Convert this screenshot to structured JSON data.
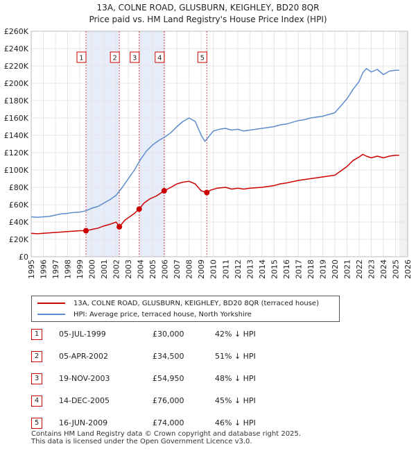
{
  "title": "13A, COLNE ROAD, GLUSBURN, KEIGHLEY, BD20 8QR",
  "subtitle": "Price paid vs. HM Land Registry's House Price Index (HPI)",
  "colors": {
    "property": "#cc0000",
    "hpi": "#5b8ccc",
    "shade": "#dde6f5"
  },
  "legend": {
    "property": "13A, COLNE ROAD, GLUSBURN, KEIGHLEY, BD20 8QR (terraced house)",
    "hpi": "HPI: Average price, terraced house, North Yorkshire"
  },
  "chart_data": {
    "type": "line",
    "title": "Price paid vs. HM Land Registry's House Price Index (HPI)",
    "xlim": [
      1995,
      2026
    ],
    "ylim": [
      0,
      260000
    ],
    "x_ticks": [
      "1995",
      "1996",
      "1997",
      "1998",
      "1999",
      "2000",
      "2001",
      "2002",
      "2003",
      "2004",
      "2005",
      "2006",
      "2007",
      "2008",
      "2009",
      "2010",
      "2011",
      "2012",
      "2013",
      "2014",
      "2015",
      "2016",
      "2017",
      "2018",
      "2019",
      "2020",
      "2021",
      "2022",
      "2023",
      "2024",
      "2025",
      "2026"
    ],
    "y_ticks": [
      {
        "v": 0,
        "label": "£0"
      },
      {
        "v": 20000,
        "label": "£20K"
      },
      {
        "v": 40000,
        "label": "£40K"
      },
      {
        "v": 60000,
        "label": "£60K"
      },
      {
        "v": 80000,
        "label": "£80K"
      },
      {
        "v": 100000,
        "label": "£100K"
      },
      {
        "v": 120000,
        "label": "£120K"
      },
      {
        "v": 140000,
        "label": "£140K"
      },
      {
        "v": 160000,
        "label": "£160K"
      },
      {
        "v": 180000,
        "label": "£180K"
      },
      {
        "v": 200000,
        "label": "£200K"
      },
      {
        "v": 220000,
        "label": "£220K"
      },
      {
        "v": 240000,
        "label": "£240K"
      },
      {
        "v": 260000,
        "label": "£260K"
      }
    ],
    "shaded_ranges": [
      [
        1999.51,
        2002.26
      ],
      [
        2003.89,
        2005.95
      ]
    ],
    "projection_start": 2025.3,
    "series": [
      {
        "name": "HPI: Average price, terraced house, North Yorkshire",
        "x": [
          1995,
          1995.5,
          1996,
          1996.5,
          1997,
          1997.5,
          1998,
          1998.5,
          1999,
          1999.5,
          2000,
          2000.5,
          2001,
          2001.5,
          2002,
          2002.5,
          2003,
          2003.5,
          2004,
          2004.5,
          2005,
          2005.5,
          2006,
          2006.5,
          2007,
          2007.5,
          2008,
          2008.5,
          2009,
          2009.3,
          2009.6,
          2010,
          2010.5,
          2011,
          2011.5,
          2012,
          2012.5,
          2013,
          2013.5,
          2014,
          2014.5,
          2015,
          2015.5,
          2016,
          2016.5,
          2017,
          2017.5,
          2018,
          2018.5,
          2019,
          2019.5,
          2020,
          2020.5,
          2021,
          2021.5,
          2022,
          2022.3,
          2022.6,
          2023,
          2023.5,
          2024,
          2024.5,
          2025,
          2025.3
        ],
        "values": [
          46000,
          45500,
          46000,
          46500,
          48000,
          49500,
          50000,
          51000,
          51500,
          53000,
          56000,
          58000,
          62000,
          66000,
          71000,
          80000,
          90000,
          100000,
          112000,
          122000,
          129000,
          134000,
          138000,
          143000,
          150000,
          156000,
          160000,
          156000,
          140000,
          133000,
          138000,
          145000,
          147000,
          148000,
          146000,
          147000,
          145000,
          146000,
          147000,
          148000,
          149000,
          150000,
          152000,
          153000,
          155000,
          157000,
          158000,
          160000,
          161000,
          162000,
          164000,
          166000,
          174000,
          182000,
          193000,
          202000,
          212000,
          217000,
          213000,
          216000,
          210000,
          214000,
          215000,
          215000
        ]
      },
      {
        "name": "13A, COLNE ROAD, GLUSBURN, KEIGHLEY, BD20 8QR (terraced house)",
        "x": [
          1995,
          1995.5,
          1996,
          1996.5,
          1997,
          1997.5,
          1998,
          1998.5,
          1999,
          1999.51,
          2000,
          2000.5,
          2001,
          2001.5,
          2002,
          2002.26,
          2002.7,
          2003,
          2003.5,
          2003.89,
          2004.3,
          2004.8,
          2005.3,
          2005.95,
          2006.5,
          2007,
          2007.5,
          2008,
          2008.5,
          2009,
          2009.46,
          2009.8,
          2010.3,
          2011,
          2011.5,
          2012,
          2012.5,
          2013,
          2013.5,
          2014,
          2014.5,
          2015,
          2015.5,
          2016,
          2016.5,
          2017,
          2017.5,
          2018,
          2018.5,
          2019,
          2019.5,
          2020,
          2020.5,
          2021,
          2021.5,
          2022,
          2022.3,
          2022.6,
          2023,
          2023.5,
          2024,
          2024.5,
          2025,
          2025.3
        ],
        "values": [
          27000,
          26500,
          27000,
          27500,
          28000,
          28500,
          29000,
          29500,
          30000,
          30000,
          31500,
          33000,
          35500,
          37500,
          40000,
          34500,
          42000,
          45000,
          50000,
          54950,
          62000,
          67000,
          70000,
          76000,
          80000,
          84000,
          86000,
          87000,
          84000,
          76000,
          74000,
          77000,
          79000,
          80000,
          78000,
          79000,
          78000,
          79000,
          79500,
          80000,
          81000,
          82000,
          84000,
          85000,
          86500,
          88000,
          89000,
          90000,
          91000,
          92000,
          93000,
          94000,
          99000,
          104000,
          111000,
          115000,
          118000,
          116000,
          114000,
          116000,
          114000,
          116000,
          117000,
          117000
        ]
      }
    ],
    "sales": [
      {
        "num": "1",
        "x": 1999.51,
        "value": 30000
      },
      {
        "num": "2",
        "x": 2002.26,
        "value": 34500
      },
      {
        "num": "3",
        "x": 2003.89,
        "value": 54950
      },
      {
        "num": "4",
        "x": 2005.95,
        "value": 76000
      },
      {
        "num": "5",
        "x": 2009.46,
        "value": 74000
      }
    ]
  },
  "table": [
    {
      "num": "1",
      "date": "05-JUL-1999",
      "price": "£30,000",
      "hpi": "42% ↓ HPI"
    },
    {
      "num": "2",
      "date": "05-APR-2002",
      "price": "£34,500",
      "hpi": "51% ↓ HPI"
    },
    {
      "num": "3",
      "date": "19-NOV-2003",
      "price": "£54,950",
      "hpi": "48% ↓ HPI"
    },
    {
      "num": "4",
      "date": "14-DEC-2005",
      "price": "£76,000",
      "hpi": "45% ↓ HPI"
    },
    {
      "num": "5",
      "date": "16-JUN-2009",
      "price": "£74,000",
      "hpi": "46% ↓ HPI"
    }
  ],
  "footer": {
    "line1": "Contains HM Land Registry data © Crown copyright and database right 2025.",
    "line2": "This data is licensed under the Open Government Licence v3.0."
  }
}
